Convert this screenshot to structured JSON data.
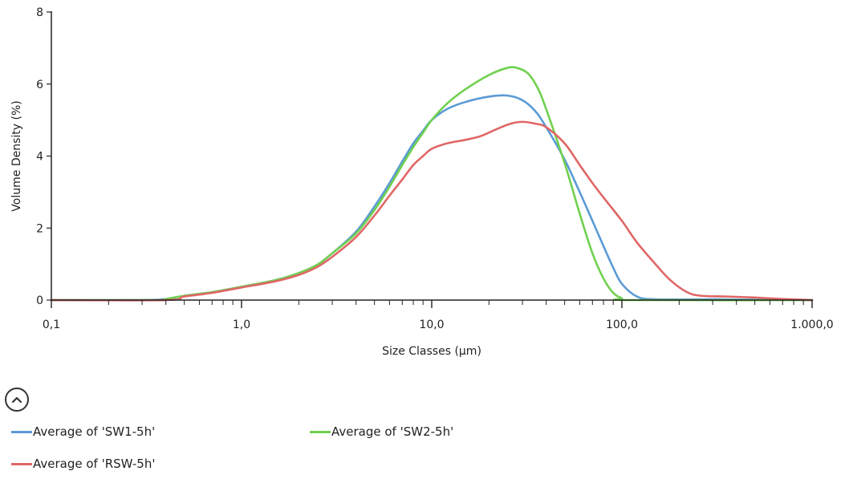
{
  "chart_data": {
    "type": "line",
    "x_scale": "log",
    "xlabel": "Size Classes (µm)",
    "ylabel": "Volume Density (%)",
    "xlim": [
      0.1,
      1000
    ],
    "ylim": [
      0,
      8
    ],
    "x_ticks": [
      {
        "value": 0.1,
        "label": "0,1"
      },
      {
        "value": 1,
        "label": "1,0"
      },
      {
        "value": 10,
        "label": "10,0"
      },
      {
        "value": 100,
        "label": "100,0"
      },
      {
        "value": 1000,
        "label": "1.000,0"
      }
    ],
    "y_ticks": [
      {
        "value": 0,
        "label": "0"
      },
      {
        "value": 2,
        "label": "2"
      },
      {
        "value": 4,
        "label": "4"
      },
      {
        "value": 6,
        "label": "6"
      },
      {
        "value": 8,
        "label": "8"
      }
    ],
    "grid": false,
    "legend_position": "bottom",
    "series": [
      {
        "name": "Average of 'SW1-5h'",
        "color": "#5b9bd5",
        "points": [
          [
            0.1,
            0
          ],
          [
            0.3,
            0
          ],
          [
            0.4,
            0.03
          ],
          [
            0.5,
            0.12
          ],
          [
            0.7,
            0.22
          ],
          [
            1.0,
            0.37
          ],
          [
            1.5,
            0.55
          ],
          [
            2.0,
            0.75
          ],
          [
            2.5,
            0.98
          ],
          [
            3.0,
            1.3
          ],
          [
            4.0,
            1.9
          ],
          [
            5.0,
            2.6
          ],
          [
            6.0,
            3.25
          ],
          [
            7.0,
            3.85
          ],
          [
            8.0,
            4.35
          ],
          [
            9.0,
            4.7
          ],
          [
            10.0,
            5.0
          ],
          [
            12.0,
            5.3
          ],
          [
            15.0,
            5.5
          ],
          [
            20.0,
            5.65
          ],
          [
            25.0,
            5.68
          ],
          [
            30.0,
            5.55
          ],
          [
            35.0,
            5.25
          ],
          [
            40.0,
            4.8
          ],
          [
            50.0,
            3.9
          ],
          [
            60.0,
            3.0
          ],
          [
            70.0,
            2.2
          ],
          [
            80.0,
            1.5
          ],
          [
            90.0,
            0.9
          ],
          [
            100.0,
            0.45
          ],
          [
            120.0,
            0.1
          ],
          [
            150.0,
            0.02
          ],
          [
            300.0,
            0.02
          ],
          [
            500.0,
            0.01
          ],
          [
            1000.0,
            0
          ]
        ]
      },
      {
        "name": "Average of 'SW2-5h'",
        "color": "#70d04f",
        "points": [
          [
            0.1,
            0
          ],
          [
            0.35,
            0
          ],
          [
            0.4,
            0.03
          ],
          [
            0.5,
            0.12
          ],
          [
            0.7,
            0.22
          ],
          [
            1.0,
            0.37
          ],
          [
            1.5,
            0.55
          ],
          [
            2.0,
            0.75
          ],
          [
            2.5,
            0.98
          ],
          [
            3.0,
            1.3
          ],
          [
            4.0,
            1.85
          ],
          [
            5.0,
            2.5
          ],
          [
            6.0,
            3.15
          ],
          [
            7.0,
            3.75
          ],
          [
            8.0,
            4.25
          ],
          [
            9.0,
            4.65
          ],
          [
            10.0,
            5.0
          ],
          [
            12.0,
            5.45
          ],
          [
            15.0,
            5.85
          ],
          [
            20.0,
            6.25
          ],
          [
            25.0,
            6.45
          ],
          [
            28.0,
            6.45
          ],
          [
            32.0,
            6.3
          ],
          [
            36.0,
            5.9
          ],
          [
            40.0,
            5.3
          ],
          [
            50.0,
            3.8
          ],
          [
            60.0,
            2.4
          ],
          [
            70.0,
            1.3
          ],
          [
            80.0,
            0.6
          ],
          [
            90.0,
            0.2
          ],
          [
            100.0,
            0.05
          ],
          [
            110.0,
            0
          ],
          [
            1000.0,
            0
          ]
        ]
      },
      {
        "name": "Average of 'RSW-5h'",
        "color": "#e06666",
        "points": [
          [
            0.1,
            0
          ],
          [
            0.4,
            0
          ],
          [
            0.5,
            0.1
          ],
          [
            0.7,
            0.2
          ],
          [
            1.0,
            0.35
          ],
          [
            1.5,
            0.52
          ],
          [
            2.0,
            0.7
          ],
          [
            2.5,
            0.92
          ],
          [
            3.0,
            1.2
          ],
          [
            4.0,
            1.75
          ],
          [
            5.0,
            2.35
          ],
          [
            6.0,
            2.9
          ],
          [
            7.0,
            3.35
          ],
          [
            8.0,
            3.75
          ],
          [
            9.0,
            4.0
          ],
          [
            10.0,
            4.2
          ],
          [
            12.0,
            4.35
          ],
          [
            15.0,
            4.45
          ],
          [
            18.0,
            4.55
          ],
          [
            22.0,
            4.75
          ],
          [
            26.0,
            4.9
          ],
          [
            30.0,
            4.95
          ],
          [
            35.0,
            4.9
          ],
          [
            40.0,
            4.8
          ],
          [
            50.0,
            4.35
          ],
          [
            60.0,
            3.75
          ],
          [
            70.0,
            3.25
          ],
          [
            80.0,
            2.85
          ],
          [
            100.0,
            2.2
          ],
          [
            120.0,
            1.6
          ],
          [
            150.0,
            1.0
          ],
          [
            180.0,
            0.55
          ],
          [
            220.0,
            0.22
          ],
          [
            260.0,
            0.12
          ],
          [
            350.0,
            0.1
          ],
          [
            500.0,
            0.07
          ],
          [
            700.0,
            0.03
          ],
          [
            1000.0,
            0
          ]
        ]
      }
    ]
  },
  "ui": {
    "collapse_icon": "chevron-up-circle-icon"
  }
}
